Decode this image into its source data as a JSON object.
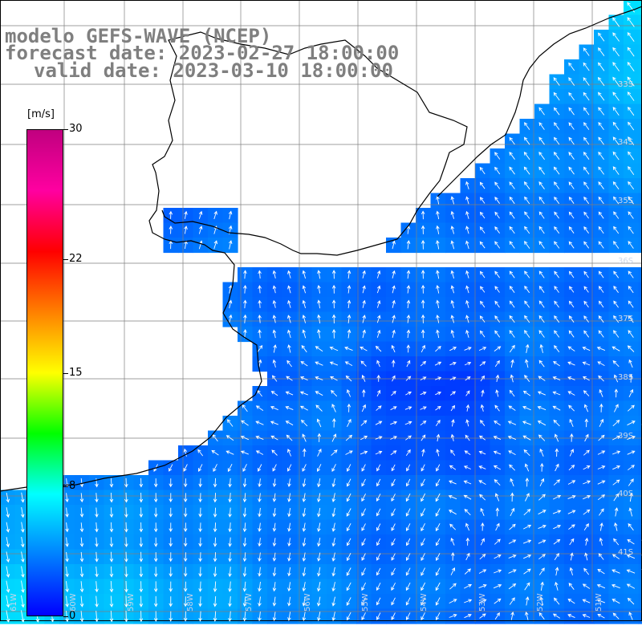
{
  "title": {
    "line1": "modelo GEFS-WAVE (NCEP)",
    "line2": "forecast date: 2023-02-27 18:00:00",
    "line3": "valid date: 2023-03-10 18:00:00"
  },
  "colorbar": {
    "unit": "[m/s]",
    "ticks": [
      "30",
      "22",
      "15",
      "8",
      "0"
    ],
    "tick_values": [
      30,
      22,
      15,
      8,
      0
    ],
    "colors": [
      "#0000ff",
      "#0080ff",
      "#00ffff",
      "#00ff00",
      "#ffff00",
      "#ff8000",
      "#ff0000",
      "#ff00a0",
      "#c0007f"
    ]
  },
  "map": {
    "variable": "wind speed",
    "units": "m/s",
    "lat_labels": [
      "33S",
      "34S",
      "35S",
      "36S",
      "37S",
      "38S",
      "39S",
      "40S",
      "41S"
    ],
    "lon_labels": [
      "61W",
      "60W",
      "59W",
      "58W",
      "57W",
      "56W",
      "55W",
      "54W",
      "53W",
      "52W",
      "51W"
    ],
    "land_color": "#ffffff",
    "coast_color": "#000000",
    "grid_color": "#7f7f7f"
  }
}
